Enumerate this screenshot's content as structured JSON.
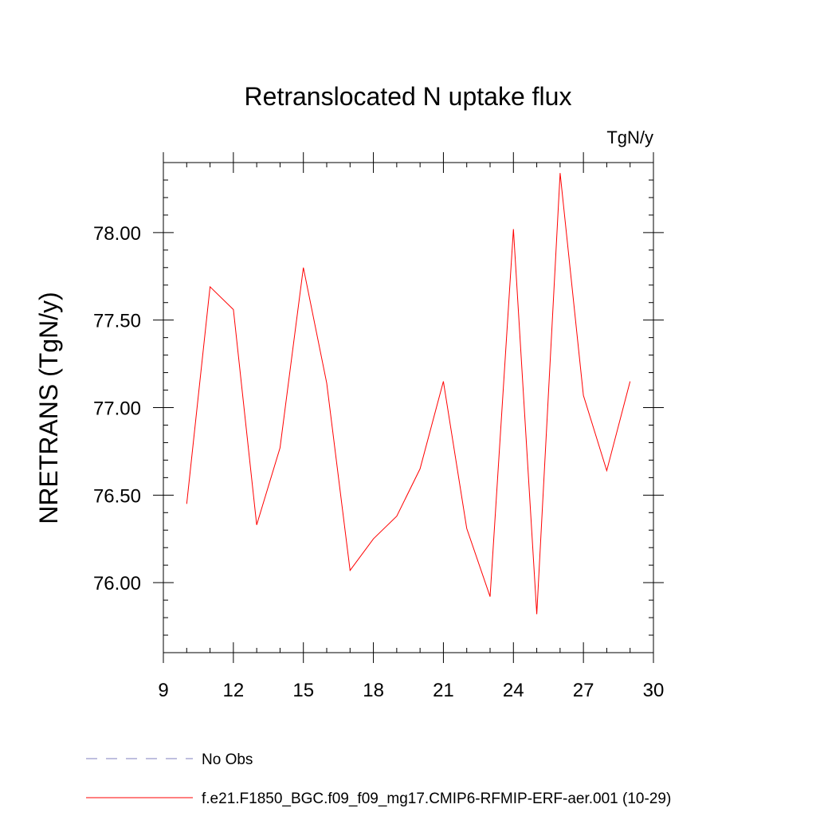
{
  "chart_data": {
    "type": "line",
    "title": "Retranslocated N uptake flux",
    "units_label": "TgN/y",
    "ylabel": "NRETRANS  (TgN/y)",
    "xlabel": "",
    "xlim": [
      9,
      30
    ],
    "ylim": [
      75.6,
      78.4
    ],
    "x_ticks": [
      9,
      12,
      15,
      18,
      21,
      24,
      27,
      30
    ],
    "x_tick_labels": [
      "9",
      "12",
      "15",
      "18",
      "21",
      "24",
      "27",
      "30"
    ],
    "y_ticks": [
      76.0,
      76.5,
      77.0,
      77.5,
      78.0
    ],
    "y_tick_labels": [
      "76.00",
      "76.50",
      "77.00",
      "77.50",
      "78.00"
    ],
    "grid": false,
    "legend_position": "bottom",
    "series": [
      {
        "name": "f.e21.F1850_BGC.f09_f09_mg17.CMIP6-RFMIP-ERF-aer.001 (10-29)",
        "color": "#ff0000",
        "style": "solid",
        "x": [
          10,
          11,
          12,
          13,
          14,
          15,
          16,
          17,
          18,
          19,
          20,
          21,
          22,
          23,
          24,
          25,
          26,
          27,
          28,
          29
        ],
        "values": [
          76.45,
          77.69,
          77.56,
          76.33,
          76.77,
          77.8,
          77.14,
          76.07,
          76.25,
          76.38,
          76.65,
          77.15,
          76.31,
          75.92,
          78.02,
          75.82,
          78.34,
          77.07,
          76.64,
          77.15
        ]
      }
    ],
    "legend": [
      {
        "label": "No Obs",
        "color": "#7f7fbf",
        "style": "dashed"
      },
      {
        "label": "f.e21.F1850_BGC.f09_f09_mg17.CMIP6-RFMIP-ERF-aer.001 (10-29)",
        "color": "#ff0000",
        "style": "solid"
      }
    ]
  }
}
